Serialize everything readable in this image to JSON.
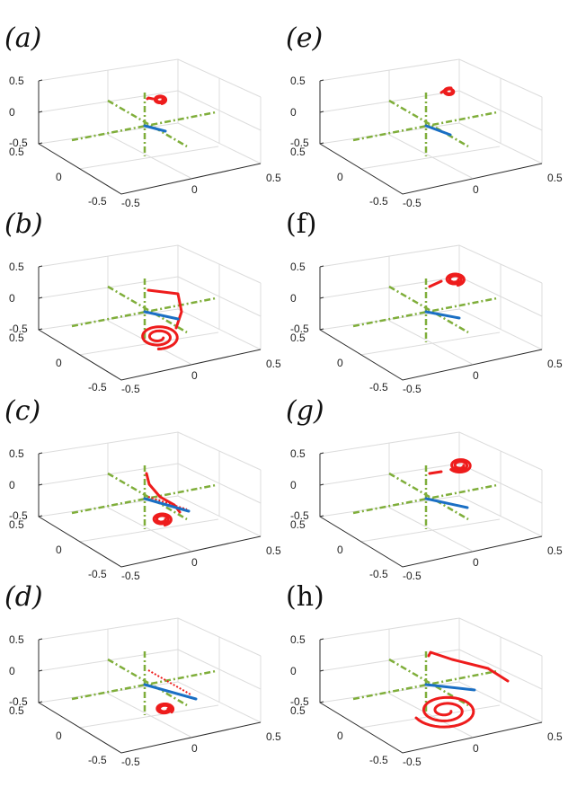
{
  "figure": {
    "colors": {
      "axes_box": "#dcdcdc",
      "axes_frame": "#2b2b2b",
      "green_axes": "#7fae3a",
      "blue_segment": "#1a6fc4",
      "red_curve": "#ee1c1c"
    }
  },
  "chart_data": [
    {
      "type": "line3d",
      "panel": "(a)",
      "italic": true,
      "z_ticks": [
        "0.5",
        "0",
        "-0.5"
      ],
      "y_ticks": [
        "0.5",
        "0",
        "-0.5"
      ],
      "x_ticks": [
        "-0.5",
        "0",
        "0.5"
      ],
      "series": [
        "green dash-dot coordinate axes",
        "blue segment",
        "red spiral curve"
      ]
    },
    {
      "type": "line3d",
      "panel": "(b)",
      "italic": true,
      "z_ticks": [
        "0.5",
        "0",
        "-0.5"
      ],
      "y_ticks": [
        "0.5",
        "0",
        "-0.5"
      ],
      "x_ticks": [
        "-0.5",
        "0",
        "0.5"
      ],
      "series": [
        "green dash-dot coordinate axes",
        "blue segment",
        "red spiral curve"
      ]
    },
    {
      "type": "line3d",
      "panel": "(c)",
      "italic": true,
      "z_ticks": [
        "0.5",
        "0",
        "-0.5"
      ],
      "y_ticks": [
        "0.5",
        "0",
        "-0.5"
      ],
      "x_ticks": [
        "-0.5",
        "0",
        "0.5"
      ],
      "series": [
        "green dash-dot coordinate axes",
        "blue segment",
        "red spiral curve",
        "red dotted line"
      ]
    },
    {
      "type": "line3d",
      "panel": "(d)",
      "italic": true,
      "z_ticks": [
        "0.5",
        "0",
        "-0.5"
      ],
      "y_ticks": [
        "0.5",
        "0",
        "-0.5"
      ],
      "x_ticks": [
        "-0.5",
        "0",
        "0.5"
      ],
      "series": [
        "green dash-dot coordinate axes",
        "blue segment",
        "red spiral curve",
        "red dotted line"
      ]
    },
    {
      "type": "line3d",
      "panel": "(e)",
      "italic": true,
      "z_ticks": [
        "0.5",
        "0",
        "-0.5"
      ],
      "y_ticks": [
        "0.5",
        "0",
        "-0.5"
      ],
      "x_ticks": [
        "-0.5",
        "0",
        "0.5"
      ],
      "series": [
        "green dash-dot coordinate axes",
        "blue segment",
        "red spiral curve"
      ]
    },
    {
      "type": "line3d",
      "panel": "(f)",
      "italic": false,
      "z_ticks": [
        "0.5",
        "0",
        "-0.5"
      ],
      "y_ticks": [
        "0.5",
        "0",
        "-0.5"
      ],
      "x_ticks": [
        "-0.5",
        "0",
        "0.5"
      ],
      "series": [
        "green dash-dot coordinate axes",
        "blue segment",
        "red spiral curve"
      ]
    },
    {
      "type": "line3d",
      "panel": "(g)",
      "italic": true,
      "z_ticks": [
        "0.5",
        "0",
        "-0.5"
      ],
      "y_ticks": [
        "0.5",
        "0",
        "-0.5"
      ],
      "x_ticks": [
        "-0.5",
        "0",
        "0.5"
      ],
      "series": [
        "green dash-dot coordinate axes",
        "blue segment",
        "red spiral curve"
      ]
    },
    {
      "type": "line3d",
      "panel": "(h)",
      "italic": false,
      "z_ticks": [
        "0.5",
        "0",
        "-0.5"
      ],
      "y_ticks": [
        "0.5",
        "0",
        "-0.5"
      ],
      "x_ticks": [
        "-0.5",
        "0",
        "0.5"
      ],
      "series": [
        "green dash-dot coordinate axes",
        "blue segment",
        "red spiral curve"
      ]
    }
  ]
}
